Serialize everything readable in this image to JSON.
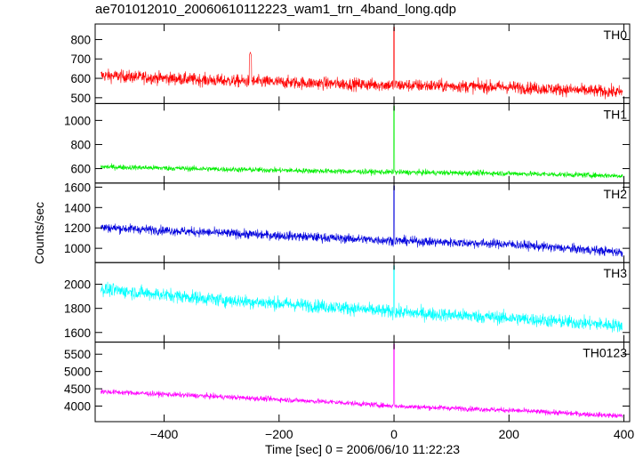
{
  "chart_data": {
    "type": "line",
    "title": "ae701012010_20060610112223_wam1_trn_4band_long.qdp",
    "xlabel": "Time [sec] 0 = 2006/06/10 11:22:23",
    "ylabel": "Counts/sec",
    "xlim": [
      -520,
      410
    ],
    "xticks": [
      -400,
      -200,
      0,
      200,
      400
    ],
    "grid": false,
    "panels": [
      {
        "name": "TH0",
        "color": "#ff0000",
        "ylim": [
          470,
          880
        ],
        "yticks": [
          500,
          600,
          700,
          800
        ],
        "baseline": [
          [
            -510,
            615
          ],
          [
            -300,
            588
          ],
          [
            -100,
            572
          ],
          [
            0,
            565
          ],
          [
            200,
            555
          ],
          [
            400,
            528
          ]
        ],
        "noise": 32,
        "events": [
          {
            "x": -250,
            "y": 735
          },
          {
            "x": 0,
            "y": 870
          }
        ]
      },
      {
        "name": "TH1",
        "color": "#00ee00",
        "ylim": [
          480,
          1140
        ],
        "yticks": [
          600,
          800,
          1000
        ],
        "baseline": [
          [
            -510,
            615
          ],
          [
            -300,
            595
          ],
          [
            -100,
            578
          ],
          [
            0,
            570
          ],
          [
            200,
            560
          ],
          [
            400,
            540
          ]
        ],
        "noise": 22,
        "events": [
          {
            "x": 0,
            "y": 1125
          }
        ]
      },
      {
        "name": "TH2",
        "color": "#0000dd",
        "ylim": [
          860,
          1640
        ],
        "yticks": [
          1000,
          1200,
          1400,
          1600
        ],
        "baseline": [
          [
            -510,
            1205
          ],
          [
            -300,
            1150
          ],
          [
            -100,
            1100
          ],
          [
            0,
            1075
          ],
          [
            200,
            1040
          ],
          [
            400,
            960
          ]
        ],
        "noise": 45,
        "events": [
          {
            "x": 0,
            "y": 1620
          }
        ]
      },
      {
        "name": "TH3",
        "color": "#00ffff",
        "ylim": [
          1520,
          2180
        ],
        "yticks": [
          1600,
          1800,
          2000
        ],
        "baseline": [
          [
            -510,
            1960
          ],
          [
            -300,
            1870
          ],
          [
            -100,
            1810
          ],
          [
            0,
            1770
          ],
          [
            200,
            1720
          ],
          [
            400,
            1655
          ]
        ],
        "noise": 55,
        "events": [
          {
            "x": 0,
            "y": 2160
          }
        ]
      },
      {
        "name": "TH0123",
        "color": "#ff00ff",
        "ylim": [
          3550,
          5850
        ],
        "yticks": [
          4000,
          4500,
          5000,
          5500
        ],
        "baseline": [
          [
            -510,
            4420
          ],
          [
            -300,
            4270
          ],
          [
            -100,
            4110
          ],
          [
            0,
            4000
          ],
          [
            200,
            3880
          ],
          [
            400,
            3710
          ]
        ],
        "noise": 75,
        "events": [
          {
            "x": 0,
            "y": 5800
          }
        ]
      }
    ]
  }
}
